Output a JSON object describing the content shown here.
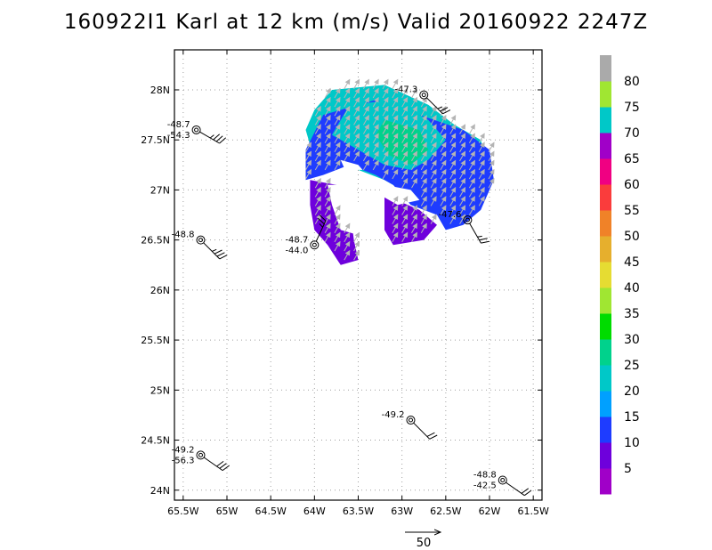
{
  "title": "160922I1 Karl at 12 km (m/s) Valid 20160922 2247Z",
  "chart_data": {
    "type": "heatmap",
    "title": "160922I1 Karl at 12 km (m/s) Valid 20160922 2247Z",
    "xlim": [
      -65.6,
      -61.4
    ],
    "ylim": [
      23.9,
      28.4
    ],
    "x_ticks": [
      -65.5,
      -65,
      -64.5,
      -64,
      -63.5,
      -63,
      -62.5,
      -62,
      -61.5
    ],
    "x_tick_labels": [
      "65.5W",
      "65W",
      "64.5W",
      "64W",
      "63.5W",
      "63W",
      "62.5W",
      "62W",
      "61.5W"
    ],
    "y_ticks": [
      24,
      24.5,
      25,
      25.5,
      26,
      26.5,
      27,
      27.5,
      28
    ],
    "y_tick_labels": [
      "24N",
      "24.5N",
      "25N",
      "25.5N",
      "26N",
      "26.5N",
      "27N",
      "27.5N",
      "28N"
    ],
    "grid": true,
    "colorbar": {
      "labels": [
        "5",
        "10",
        "15",
        "20",
        "25",
        "30",
        "35",
        "40",
        "45",
        "50",
        "55",
        "60",
        "65",
        "70",
        "75",
        "80"
      ],
      "colors": [
        "#a000c8",
        "#6e00dc",
        "#1e3cff",
        "#00a0ff",
        "#00c8c8",
        "#00d28c",
        "#00dc00",
        "#a0e632",
        "#e6dc32",
        "#e6af2d",
        "#f08228",
        "#fa3c3c",
        "#f00082",
        "#a000c8",
        "#00c8c8",
        "#a0e632",
        "#aaaaaa"
      ]
    },
    "wind_field": {
      "regions": [
        {
          "level": 20,
          "polygon": [
            [
              -63.8,
              28.0
            ],
            [
              -63.2,
              28.05
            ],
            [
              -62.7,
              27.85
            ],
            [
              -62.4,
              27.65
            ],
            [
              -62.1,
              27.5
            ],
            [
              -62.0,
              27.2
            ],
            [
              -62.2,
              27.05
            ],
            [
              -62.6,
              27.0
            ],
            [
              -62.8,
              26.9
            ],
            [
              -63.2,
              27.1
            ],
            [
              -63.5,
              27.2
            ],
            [
              -63.7,
              27.35
            ],
            [
              -64.0,
              27.3
            ],
            [
              -64.1,
              27.6
            ],
            [
              -64.0,
              27.8
            ]
          ]
        },
        {
          "level": 10,
          "polygon": [
            [
              -63.9,
              27.75
            ],
            [
              -63.3,
              27.9
            ],
            [
              -62.8,
              27.75
            ],
            [
              -62.3,
              27.6
            ],
            [
              -62.0,
              27.4
            ],
            [
              -61.95,
              27.1
            ],
            [
              -62.1,
              26.8
            ],
            [
              -62.3,
              26.65
            ],
            [
              -62.5,
              26.6
            ],
            [
              -62.6,
              26.75
            ],
            [
              -62.9,
              26.85
            ],
            [
              -63.1,
              27.05
            ],
            [
              -63.3,
              27.15
            ],
            [
              -63.6,
              27.25
            ],
            [
              -63.9,
              27.15
            ],
            [
              -64.1,
              27.1
            ],
            [
              -64.1,
              27.4
            ]
          ]
        },
        {
          "level": 20,
          "polygon": [
            [
              -63.6,
              27.85
            ],
            [
              -63.1,
              27.9
            ],
            [
              -62.7,
              27.7
            ],
            [
              -62.5,
              27.5
            ],
            [
              -62.7,
              27.3
            ],
            [
              -62.9,
              27.2
            ],
            [
              -63.2,
              27.25
            ],
            [
              -63.5,
              27.4
            ],
            [
              -63.8,
              27.55
            ]
          ]
        },
        {
          "level": 25,
          "polygon": [
            [
              -63.2,
              27.7
            ],
            [
              -62.8,
              27.6
            ],
            [
              -62.7,
              27.4
            ],
            [
              -62.9,
              27.25
            ],
            [
              -63.15,
              27.35
            ],
            [
              -63.3,
              27.55
            ]
          ]
        },
        {
          "level": 5,
          "polygon": [
            [
              -64.05,
              27.1
            ],
            [
              -63.75,
              27.05
            ],
            [
              -63.6,
              26.85
            ],
            [
              -63.55,
              26.5
            ],
            [
              -63.5,
              26.3
            ],
            [
              -63.7,
              26.25
            ],
            [
              -63.85,
              26.45
            ],
            [
              -64.0,
              26.6
            ],
            [
              -64.05,
              26.85
            ]
          ]
        },
        {
          "level": 5,
          "polygon": [
            [
              -63.2,
              26.95
            ],
            [
              -62.8,
              26.8
            ],
            [
              -62.6,
              26.65
            ],
            [
              -62.75,
              26.5
            ],
            [
              -63.1,
              26.45
            ],
            [
              -63.2,
              26.6
            ]
          ]
        }
      ],
      "holes": [
        {
          "polygon": [
            [
              -63.85,
              27.05
            ],
            [
              -63.55,
              27.05
            ],
            [
              -63.45,
              26.7
            ],
            [
              -63.5,
              26.55
            ],
            [
              -63.7,
              26.6
            ],
            [
              -63.8,
              26.85
            ]
          ]
        },
        {
          "polygon": [
            [
              -63.2,
              27.05
            ],
            [
              -62.9,
              27.0
            ],
            [
              -62.8,
              26.9
            ],
            [
              -63.05,
              26.85
            ],
            [
              -63.25,
              26.95
            ]
          ]
        },
        {
          "polygon": [
            [
              -63.7,
              27.3
            ],
            [
              -63.5,
              27.25
            ],
            [
              -63.45,
              27.2
            ],
            [
              -63.65,
              27.2
            ]
          ]
        }
      ],
      "arrow_direction_deg": 30,
      "arrow_speed_ms": 15
    },
    "stations": [
      {
        "lon": -65.35,
        "lat": 27.6,
        "temp": "-48.7",
        "dewpoint": "-54.3",
        "wind_dir": 300,
        "wind_speed": 25
      },
      {
        "lon": -65.3,
        "lat": 26.5,
        "temp": "-48.8",
        "dewpoint": "",
        "wind_dir": 315,
        "wind_speed": 25
      },
      {
        "lon": -64.0,
        "lat": 26.45,
        "temp": "-48.7",
        "dewpoint": "-44.0",
        "wind_dir": 205,
        "wind_speed": 15
      },
      {
        "lon": -62.75,
        "lat": 27.95,
        "temp": "-47.3",
        "dewpoint": "",
        "wind_dir": 315,
        "wind_speed": 15
      },
      {
        "lon": -62.25,
        "lat": 26.7,
        "temp": "-47.6",
        "dewpoint": "",
        "wind_dir": 330,
        "wind_speed": 15
      },
      {
        "lon": -62.9,
        "lat": 24.7,
        "temp": "-49.2",
        "dewpoint": "",
        "wind_dir": 315,
        "wind_speed": 20
      },
      {
        "lon": -65.3,
        "lat": 24.35,
        "temp": "-49.2",
        "dewpoint": "-56.3",
        "wind_dir": 305,
        "wind_speed": 30
      },
      {
        "lon": -61.85,
        "lat": 24.1,
        "temp": "-48.8",
        "dewpoint": "-42.5",
        "wind_dir": 305,
        "wind_speed": 20
      }
    ],
    "reference_vector": {
      "value": "50"
    }
  },
  "colors": {
    "frame": "#000000",
    "grid": "#a0a0a0",
    "arrow": "#b4b4b4"
  }
}
